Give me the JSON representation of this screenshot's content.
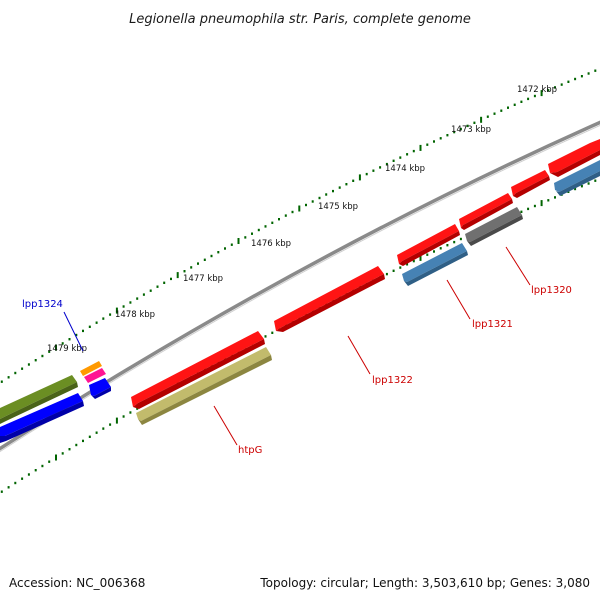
{
  "title": "Legionella pneumophila str. Paris, complete genome",
  "footer": {
    "accession": "Accession: NC_006368",
    "topology": "Topology: circular; Length: 3,503,610 bp; Genes: 3,080"
  },
  "ticks": [
    {
      "label": "1472 kbp",
      "kbp": 1472
    },
    {
      "label": "1473 kbp",
      "kbp": 1473
    },
    {
      "label": "1474 kbp",
      "kbp": 1474
    },
    {
      "label": "1475 kbp",
      "kbp": 1475
    },
    {
      "label": "1476 kbp",
      "kbp": 1476
    },
    {
      "label": "1477 kbp",
      "kbp": 1477
    },
    {
      "label": "1478 kbp",
      "kbp": 1478
    },
    {
      "label": "1479 kbp",
      "kbp": 1479
    }
  ],
  "gene_labels": [
    {
      "name": "lpp1324",
      "color": "#0000cc"
    },
    {
      "name": "lpp1322",
      "color": "#cc0000"
    },
    {
      "name": "lpp1321",
      "color": "#cc0000"
    },
    {
      "name": "lpp1320",
      "color": "#cc0000"
    },
    {
      "name": "htpG",
      "color": "#cc0000"
    }
  ],
  "colors": {
    "backbone": "#888888",
    "cds": "#ff0000",
    "olive": "#6b8e23",
    "blue": "#0000ff",
    "steelblue": "#4682b4",
    "gray": "#707070",
    "khaki": "#bdb76b",
    "orange": "#ff9900",
    "magenta": "#ff00aa",
    "tick": "#006400"
  }
}
